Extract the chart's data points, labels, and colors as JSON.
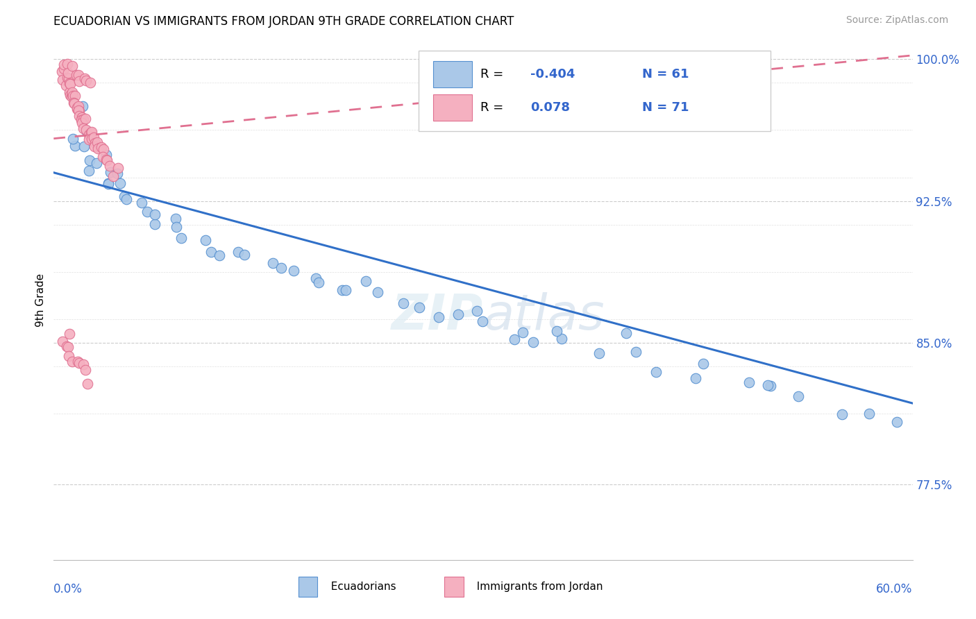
{
  "title": "ECUADORIAN VS IMMIGRANTS FROM JORDAN 9TH GRADE CORRELATION CHART",
  "source_text": "Source: ZipAtlas.com",
  "ylabel": "9th Grade",
  "xmin": 0.0,
  "xmax": 0.6,
  "ymin": 0.735,
  "ymax": 1.01,
  "r_blue": -0.404,
  "n_blue": 61,
  "r_pink": 0.078,
  "n_pink": 71,
  "blue_color": "#aac8e8",
  "pink_color": "#f5b0c0",
  "blue_edge_color": "#5590d0",
  "pink_edge_color": "#e07090",
  "blue_line_color": "#3070c8",
  "pink_line_color": "#e07090",
  "watermark": "ZIPatlas",
  "blue_line_x0": 0.0,
  "blue_line_y0": 0.94,
  "blue_line_x1": 0.6,
  "blue_line_y1": 0.818,
  "pink_line_x0": 0.0,
  "pink_line_y0": 0.958,
  "pink_line_x1": 0.6,
  "pink_line_y1": 1.002,
  "ytick_positions": [
    0.775,
    0.85,
    0.925,
    1.0
  ],
  "ytick_labels": [
    "77.5%",
    "85.0%",
    "92.5%",
    "100.0%"
  ],
  "blue_scatter_x": [
    0.01,
    0.015,
    0.02,
    0.02,
    0.025,
    0.025,
    0.03,
    0.03,
    0.035,
    0.035,
    0.04,
    0.04,
    0.045,
    0.045,
    0.05,
    0.055,
    0.06,
    0.065,
    0.07,
    0.075,
    0.08,
    0.085,
    0.09,
    0.1,
    0.11,
    0.12,
    0.13,
    0.14,
    0.15,
    0.16,
    0.17,
    0.18,
    0.19,
    0.2,
    0.21,
    0.22,
    0.23,
    0.24,
    0.25,
    0.27,
    0.28,
    0.3,
    0.32,
    0.33,
    0.34,
    0.36,
    0.38,
    0.4,
    0.42,
    0.45,
    0.48,
    0.5,
    0.52,
    0.55,
    0.57,
    0.59,
    0.3,
    0.35,
    0.4,
    0.45,
    0.5
  ],
  "blue_scatter_y": [
    0.96,
    0.958,
    0.97,
    0.955,
    0.965,
    0.95,
    0.948,
    0.942,
    0.938,
    0.945,
    0.935,
    0.94,
    0.93,
    0.935,
    0.928,
    0.925,
    0.922,
    0.92,
    0.918,
    0.916,
    0.913,
    0.91,
    0.908,
    0.905,
    0.9,
    0.897,
    0.894,
    0.892,
    0.89,
    0.888,
    0.886,
    0.884,
    0.882,
    0.88,
    0.878,
    0.876,
    0.874,
    0.872,
    0.87,
    0.866,
    0.864,
    0.86,
    0.856,
    0.854,
    0.852,
    0.848,
    0.844,
    0.84,
    0.836,
    0.832,
    0.828,
    0.824,
    0.82,
    0.816,
    0.812,
    0.808,
    0.868,
    0.858,
    0.85,
    0.84,
    0.83
  ],
  "pink_scatter_x": [
    0.005,
    0.006,
    0.007,
    0.008,
    0.009,
    0.01,
    0.01,
    0.011,
    0.012,
    0.012,
    0.013,
    0.013,
    0.014,
    0.015,
    0.015,
    0.015,
    0.016,
    0.016,
    0.017,
    0.017,
    0.018,
    0.018,
    0.019,
    0.02,
    0.02,
    0.02,
    0.021,
    0.021,
    0.022,
    0.022,
    0.023,
    0.024,
    0.025,
    0.025,
    0.026,
    0.026,
    0.027,
    0.028,
    0.029,
    0.03,
    0.031,
    0.032,
    0.033,
    0.034,
    0.035,
    0.036,
    0.038,
    0.04,
    0.042,
    0.045,
    0.007,
    0.009,
    0.011,
    0.013,
    0.015,
    0.017,
    0.019,
    0.021,
    0.023,
    0.025,
    0.006,
    0.008,
    0.01,
    0.012,
    0.014,
    0.016,
    0.018,
    0.02,
    0.022,
    0.024,
    0.01
  ],
  "pink_scatter_y": [
    0.995,
    0.993,
    0.991,
    0.99,
    0.989,
    0.988,
    0.987,
    0.986,
    0.985,
    0.984,
    0.983,
    0.982,
    0.981,
    0.98,
    0.979,
    0.978,
    0.977,
    0.976,
    0.975,
    0.974,
    0.973,
    0.972,
    0.971,
    0.97,
    0.969,
    0.968,
    0.967,
    0.966,
    0.965,
    0.964,
    0.963,
    0.962,
    0.961,
    0.96,
    0.959,
    0.958,
    0.957,
    0.956,
    0.955,
    0.954,
    0.953,
    0.952,
    0.951,
    0.95,
    0.949,
    0.948,
    0.946,
    0.944,
    0.942,
    0.94,
    0.997,
    0.996,
    0.995,
    0.994,
    0.993,
    0.992,
    0.991,
    0.99,
    0.989,
    0.988,
    0.85,
    0.848,
    0.846,
    0.844,
    0.842,
    0.84,
    0.838,
    0.836,
    0.834,
    0.832,
    0.854
  ]
}
